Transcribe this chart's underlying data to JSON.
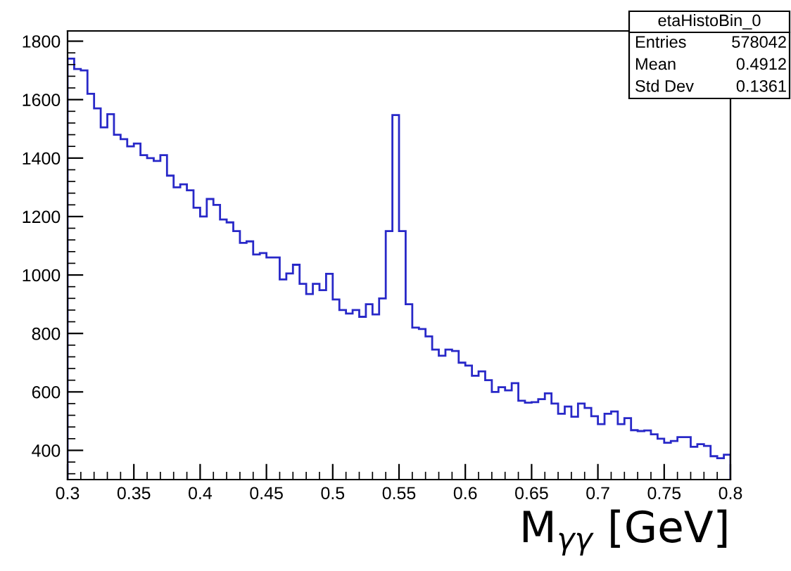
{
  "chart_data": {
    "type": "histogram",
    "xlabel": "M$_{γγ}$ [GeV]",
    "annotations": [
      "etaHistoBin_0",
      "Entries",
      "578042",
      "Mean",
      "0.4912",
      "Std Dev",
      "0.1361"
    ],
    "bins": [
      0.3,
      0.305,
      0.31,
      0.315,
      0.32,
      0.325,
      0.33,
      0.335,
      0.34,
      0.345,
      0.35,
      0.355,
      0.36,
      0.365,
      0.37,
      0.375,
      0.38,
      0.385,
      0.39,
      0.395,
      0.4,
      0.405,
      0.41,
      0.415,
      0.42,
      0.425,
      0.43,
      0.435,
      0.44,
      0.445,
      0.45,
      0.455,
      0.46,
      0.465,
      0.47,
      0.475,
      0.48,
      0.485,
      0.49,
      0.495,
      0.5,
      0.505,
      0.51,
      0.515,
      0.52,
      0.525,
      0.53,
      0.535,
      0.54,
      0.545,
      0.55,
      0.555,
      0.56,
      0.565,
      0.57,
      0.575,
      0.58,
      0.585,
      0.59,
      0.595,
      0.6,
      0.605,
      0.61,
      0.615,
      0.62,
      0.625,
      0.63,
      0.635,
      0.64,
      0.645,
      0.65,
      0.655,
      0.66,
      0.665,
      0.67,
      0.675,
      0.68,
      0.685,
      0.69,
      0.695,
      0.7,
      0.705,
      0.71,
      0.715,
      0.72,
      0.725,
      0.73,
      0.735,
      0.74,
      0.745,
      0.75,
      0.755,
      0.76,
      0.765,
      0.77,
      0.775,
      0.78,
      0.785,
      0.79,
      0.795,
      0.8
    ],
    "values": [
      1740,
      1705,
      1700,
      1620,
      1570,
      1505,
      1550,
      1480,
      1465,
      1440,
      1450,
      1410,
      1400,
      1390,
      1410,
      1340,
      1300,
      1310,
      1290,
      1230,
      1200,
      1260,
      1240,
      1190,
      1180,
      1150,
      1110,
      1115,
      1070,
      1075,
      1060,
      1060,
      985,
      1005,
      1035,
      970,
      935,
      970,
      948,
      1004,
      916,
      880,
      868,
      880,
      857,
      900,
      865,
      920,
      1150,
      1547,
      1150,
      900,
      820,
      815,
      790,
      745,
      724,
      745,
      740,
      700,
      690,
      655,
      670,
      640,
      600,
      616,
      605,
      630,
      570,
      563,
      565,
      575,
      595,
      560,
      525,
      550,
      515,
      560,
      545,
      517,
      490,
      525,
      533,
      490,
      510,
      469,
      466,
      468,
      455,
      440,
      426,
      432,
      445,
      445,
      412,
      421,
      415,
      380,
      373,
      385
    ],
    "color": "#2828c8",
    "xlim": [
      0.3,
      0.8
    ],
    "ylim": [
      300,
      1835
    ],
    "xticks": [
      0.3,
      0.35,
      0.4,
      0.45,
      0.5,
      0.55,
      0.6,
      0.65,
      0.7,
      0.75,
      0.8
    ],
    "yticks": [
      400,
      600,
      800,
      1000,
      1200,
      1400,
      1600,
      1800
    ],
    "grid": false
  }
}
